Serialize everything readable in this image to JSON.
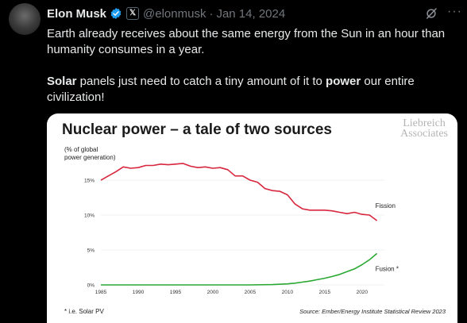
{
  "tweet": {
    "author_name": "Elon Musk",
    "handle": "@elonmusk",
    "separator": "·",
    "date": "Jan 14, 2024",
    "text_p1": "Earth already receives about the same energy from the Sun in an hour than humanity consumes in a year.",
    "text_p2_bold1": "Solar",
    "text_p2_mid": " panels just need to catch a tiny amount of it to ",
    "text_p2_bold2": "power",
    "text_p2_end": " our entire civilization!"
  },
  "icons": {
    "verified": "verified-badge-icon",
    "x_badge": "x-affiliate-icon",
    "grok": "grok-icon",
    "more": "more-icon"
  },
  "colors": {
    "verified_blue": "#1d9bf0",
    "fission": "#d7263d",
    "fusion": "#2aa834"
  },
  "chart": {
    "title": "Nuclear power – a tale of two sources",
    "brand_line1": "Liebreich",
    "brand_line2": "Associates",
    "ylabel_line1": "(% of global",
    "ylabel_line2": "power generation)",
    "footnote": "* i.e. Solar PV",
    "source": "Source: Ember/Energy Institute Statistical Review 2023"
  },
  "chart_data": {
    "type": "line",
    "title": "Nuclear power – a tale of two sources",
    "ylabel": "(% of global power generation)",
    "xlim": [
      1985,
      2023
    ],
    "ylim": [
      0,
      17.5
    ],
    "x_ticks": [
      1985,
      1990,
      1995,
      2000,
      2005,
      2010,
      2015,
      2020
    ],
    "y_ticks": [
      0,
      5,
      10,
      15
    ],
    "y_tick_labels": [
      "0%",
      "5%",
      "10%",
      "15%"
    ],
    "series": [
      {
        "name": "Fission",
        "x": [
          1985,
          1986,
          1987,
          1988,
          1989,
          1990,
          1991,
          1992,
          1993,
          1994,
          1995,
          1996,
          1997,
          1998,
          1999,
          2000,
          2001,
          2002,
          2003,
          2004,
          2005,
          2006,
          2007,
          2008,
          2009,
          2010,
          2011,
          2012,
          2013,
          2014,
          2015,
          2016,
          2017,
          2018,
          2019,
          2020,
          2021,
          2022
        ],
        "values": [
          15.0,
          15.6,
          16.2,
          16.9,
          16.7,
          16.8,
          17.1,
          17.1,
          17.3,
          17.2,
          17.3,
          17.4,
          17.0,
          16.8,
          16.9,
          16.7,
          16.8,
          16.5,
          15.6,
          15.6,
          15.0,
          14.7,
          13.8,
          13.5,
          13.4,
          12.9,
          11.6,
          10.9,
          10.7,
          10.7,
          10.7,
          10.6,
          10.4,
          10.2,
          10.4,
          10.1,
          10.0,
          9.2
        ]
      },
      {
        "name": "Fusion *",
        "x": [
          1985,
          1990,
          1995,
          2000,
          2005,
          2008,
          2010,
          2011,
          2012,
          2013,
          2014,
          2015,
          2016,
          2017,
          2018,
          2019,
          2020,
          2021,
          2022
        ],
        "values": [
          0,
          0,
          0,
          0,
          0,
          0.05,
          0.15,
          0.25,
          0.4,
          0.55,
          0.75,
          0.95,
          1.2,
          1.5,
          1.9,
          2.3,
          2.9,
          3.6,
          4.5
        ]
      }
    ]
  }
}
